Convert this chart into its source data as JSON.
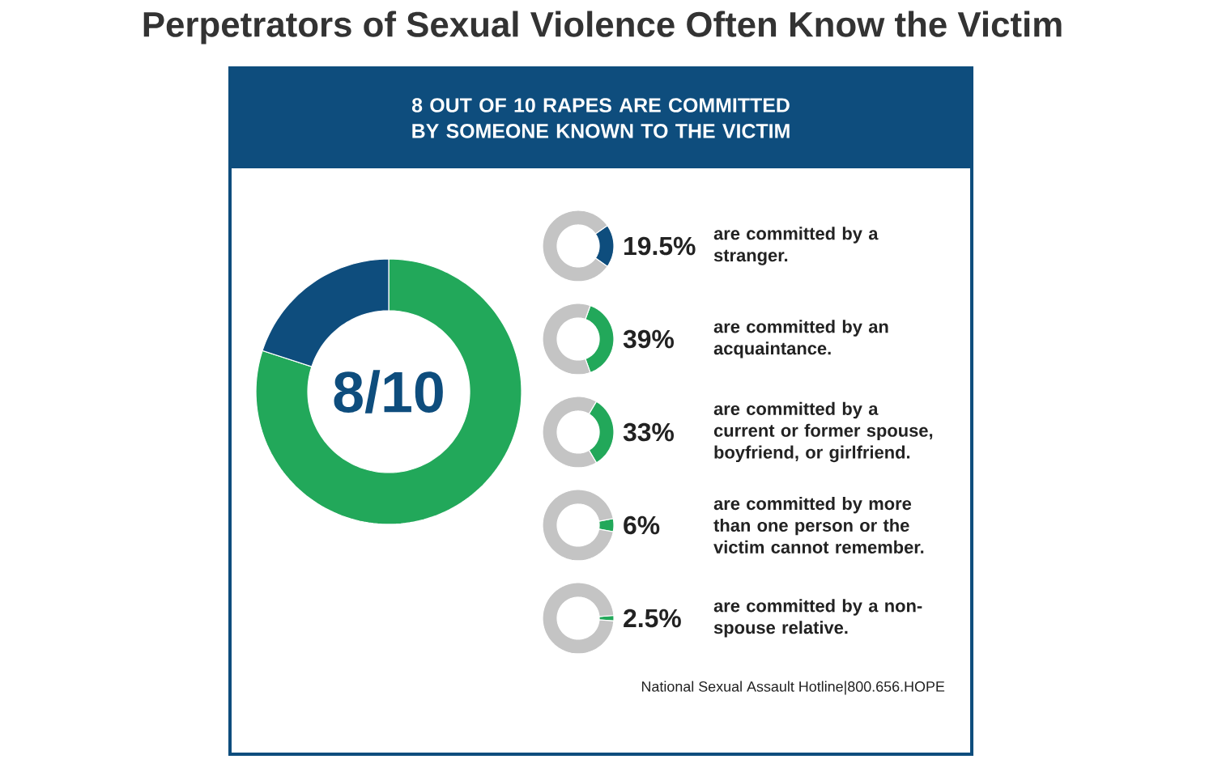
{
  "chart_data": [
    {
      "type": "donut",
      "title": "Perpetrators of Sexual Violence Often Know the Victim",
      "subtitle": "8 OUT OF 10 RAPES ARE COMMITTED BY SOMEONE KNOWN TO THE VICTIM",
      "categories": [
        null,
        null
      ],
      "values": [
        80,
        20
      ],
      "colors": [
        "#22a85a",
        "#0e4d7d"
      ],
      "annotations": [
        "8/10",
        "National Sexual Assault Hotline|800.656.HOPE"
      ]
    },
    {
      "type": "donut",
      "title": "are committed by a stranger.",
      "categories": [
        null,
        null
      ],
      "values": [
        19.5,
        80.5
      ],
      "colors": [
        "#0e4d7d",
        "#c4c4c4"
      ],
      "value_labels": [
        "19.5%",
        null
      ]
    },
    {
      "type": "donut",
      "title": "are committed by an acquaintance.",
      "categories": [
        null,
        null
      ],
      "values": [
        39,
        61
      ],
      "colors": [
        "#22a85a",
        "#c4c4c4"
      ],
      "value_labels": [
        "39%",
        null
      ]
    },
    {
      "type": "donut",
      "title": "are committed by a current or former spouse, boyfriend, or girlfriend.",
      "categories": [
        null,
        null
      ],
      "values": [
        33,
        67
      ],
      "colors": [
        "#22a85a",
        "#c4c4c4"
      ],
      "value_labels": [
        "33%",
        null
      ]
    },
    {
      "type": "donut",
      "title": "are committed by more than one person or the victim cannot remember.",
      "categories": [
        null,
        null
      ],
      "values": [
        6,
        94
      ],
      "colors": [
        "#22a85a",
        "#c4c4c4"
      ],
      "value_labels": [
        "6%",
        null
      ]
    },
    {
      "type": "donut",
      "title": "are committed by a non-spouse relative.",
      "categories": [
        null,
        null
      ],
      "values": [
        2.5,
        97.5
      ],
      "colors": [
        "#22a85a",
        "#c4c4c4"
      ],
      "value_labels": [
        "2.5%",
        null
      ]
    }
  ]
}
